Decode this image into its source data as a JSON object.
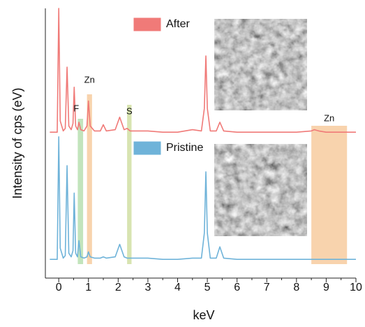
{
  "chart_data": {
    "type": "line",
    "xlabel": "keV",
    "ylabel": "Intensity of cps (eV)",
    "xlim": [
      -0.45,
      10
    ],
    "xticks": [
      0,
      1,
      2,
      3,
      4,
      5,
      6,
      7,
      8,
      9,
      10
    ],
    "ylim": [
      0,
      100
    ],
    "x": [
      -0.3,
      -0.05,
      0,
      0.05,
      0.15,
      0.22,
      0.28,
      0.34,
      0.42,
      0.48,
      0.52,
      0.57,
      0.63,
      0.68,
      0.74,
      0.85,
      0.95,
      1.0,
      1.06,
      1.2,
      1.4,
      1.5,
      1.6,
      1.9,
      2.05,
      2.2,
      2.3,
      2.4,
      3.0,
      3.5,
      4.0,
      4.5,
      4.8,
      4.9,
      4.95,
      5.0,
      5.1,
      5.3,
      5.42,
      5.55,
      6.0,
      7.0,
      8.0,
      8.5,
      8.6,
      8.75,
      9.0,
      10.0
    ],
    "series": [
      {
        "name": "After",
        "color": "#f07a78",
        "values": [
          1,
          1,
          100,
          10,
          2,
          4,
          53,
          6,
          3,
          8,
          37,
          6,
          3,
          9,
          3,
          2,
          6,
          26,
          6,
          2,
          2,
          7,
          2,
          3,
          13,
          3,
          4,
          2,
          2,
          1,
          1,
          3,
          2,
          20,
          62,
          20,
          2,
          2,
          9,
          2,
          1,
          1,
          1,
          2,
          3,
          2,
          1,
          1
        ]
      },
      {
        "name": "Pristine",
        "color": "#6fb3d9",
        "values": [
          1,
          1,
          99,
          10,
          2,
          4,
          76,
          6,
          3,
          8,
          54,
          6,
          3,
          16,
          3,
          2,
          3,
          7,
          3,
          2,
          2,
          3,
          2,
          3,
          13,
          3,
          2,
          2,
          2,
          1,
          1,
          2,
          2,
          22,
          71,
          22,
          2,
          2,
          11,
          2,
          1,
          1,
          1,
          1,
          1,
          1,
          1,
          1
        ]
      }
    ],
    "highlights": [
      {
        "label": "F",
        "range": [
          0.64,
          0.82
        ],
        "color": "#a8d8a0"
      },
      {
        "label": "Zn",
        "range": [
          0.95,
          1.12
        ],
        "color": "#f5c08a"
      },
      {
        "label": "S",
        "range": [
          2.3,
          2.45
        ],
        "color": "#c8d890"
      },
      {
        "label": "Zn",
        "range": [
          8.5,
          9.7
        ],
        "color": "#f5c08a"
      }
    ]
  }
}
